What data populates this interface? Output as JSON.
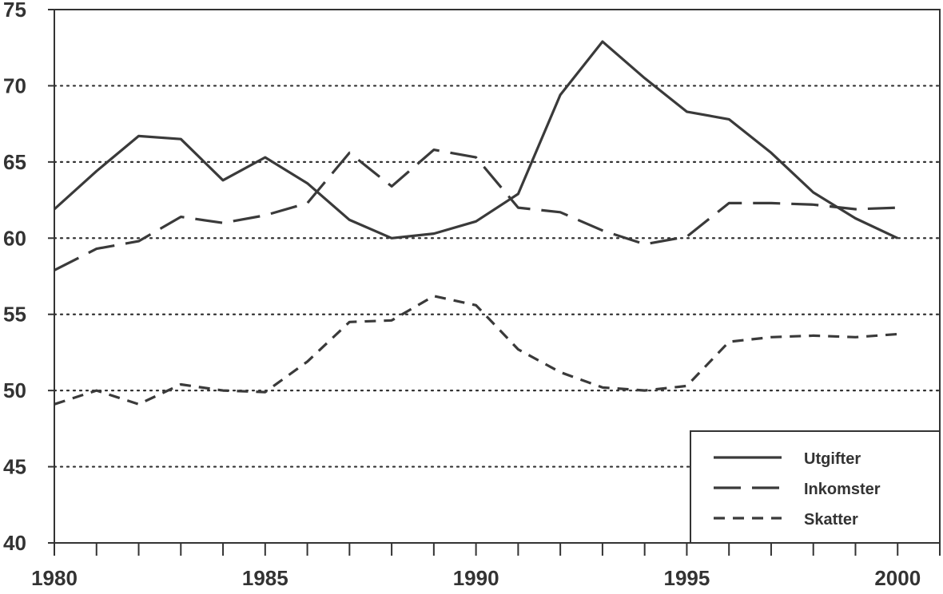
{
  "chart_data": {
    "type": "line",
    "title": "",
    "xlabel": "",
    "ylabel": "",
    "xlim": [
      1980,
      2001
    ],
    "ylim": [
      40,
      75
    ],
    "y_ticks": [
      40,
      45,
      50,
      55,
      60,
      65,
      70,
      75
    ],
    "x_tick_labels": [
      1980,
      1985,
      1990,
      1995,
      2000
    ],
    "grid": "horizontal-dotted",
    "legend_position": "bottom-right",
    "x": [
      1980,
      1981,
      1982,
      1983,
      1984,
      1985,
      1986,
      1987,
      1988,
      1989,
      1990,
      1991,
      1992,
      1993,
      1994,
      1995,
      1996,
      1997,
      1998,
      1999,
      2000
    ],
    "series": [
      {
        "name": "Utgifter",
        "dash": "solid",
        "values": [
          61.9,
          64.4,
          66.7,
          66.5,
          63.8,
          65.3,
          63.6,
          61.2,
          60.0,
          60.3,
          61.1,
          62.9,
          69.4,
          72.9,
          70.5,
          68.3,
          67.8,
          65.6,
          63.0,
          61.3,
          60.0
        ]
      },
      {
        "name": "Inkomster",
        "dash": "long",
        "values": [
          57.9,
          59.3,
          59.8,
          61.4,
          61.0,
          61.5,
          62.3,
          65.6,
          63.4,
          65.8,
          65.3,
          62.0,
          61.7,
          60.5,
          59.6,
          60.1,
          62.3,
          62.3,
          62.2,
          61.9,
          62.0
        ]
      },
      {
        "name": "Skatter",
        "dash": "short",
        "values": [
          49.1,
          50.0,
          49.1,
          50.4,
          50.0,
          49.9,
          51.9,
          54.5,
          54.6,
          56.2,
          55.6,
          52.7,
          51.2,
          50.2,
          50.0,
          50.3,
          53.2,
          53.5,
          53.6,
          53.5,
          53.7
        ]
      }
    ]
  }
}
